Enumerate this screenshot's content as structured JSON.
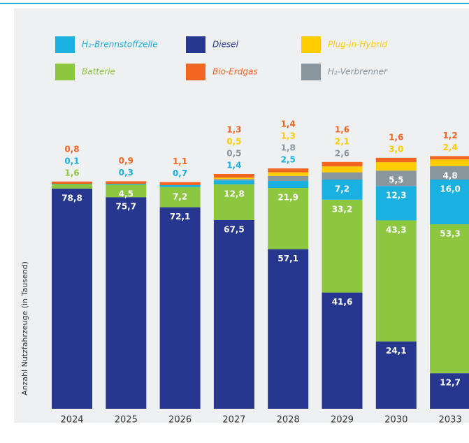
{
  "chart_data": {
    "type": "stacked_bar",
    "y_axis_label": "Anzahl Nutzfahrzeuge  (in Tausend)",
    "categories": [
      "2024",
      "2025",
      "2026",
      "2027",
      "2028",
      "2029",
      "2030",
      "2033"
    ],
    "ylim": [
      0,
      100
    ],
    "legend_position": "top",
    "series": [
      {
        "name": "Diesel",
        "color": "#27378f",
        "values": [
          78.8,
          75.7,
          72.1,
          67.5,
          57.1,
          41.6,
          24.1,
          12.7
        ],
        "value_labels": [
          "78,8",
          "75,7",
          "72,1",
          "67,5",
          "57,1",
          "41,6",
          "24,1",
          "12,7"
        ]
      },
      {
        "name": "Batterie",
        "color": "#8dc63f",
        "values": [
          1.6,
          4.5,
          7.2,
          12.8,
          21.9,
          33.2,
          43.3,
          53.3
        ],
        "value_labels": [
          "1,6",
          "4,5",
          "7,2",
          "12,8",
          "21,9",
          "33,2",
          "43,3",
          "53,3"
        ]
      },
      {
        "name": "H₂-Brennstoffzelle",
        "color": "#1ab0e0",
        "values": [
          0.1,
          0.3,
          0.7,
          1.4,
          2.5,
          7.2,
          12.3,
          16.0
        ],
        "value_labels": [
          "0,1",
          "0,3",
          "0,7",
          "1,4",
          "2,5",
          "7,2",
          "12,3",
          "16,0"
        ]
      },
      {
        "name": "H₂-Verbrenner",
        "color": "#8a969e",
        "values": [
          null,
          null,
          null,
          0.5,
          1.8,
          2.6,
          5.5,
          4.8
        ],
        "value_labels": [
          null,
          null,
          null,
          "0,5",
          "1,8",
          "2,6",
          "5,5",
          "4,8"
        ]
      },
      {
        "name": "Plug-in-Hybrid",
        "color": "#ffcc00",
        "values": [
          null,
          null,
          null,
          0.5,
          1.3,
          2.1,
          3.0,
          2.4
        ],
        "value_labels": [
          null,
          null,
          null,
          "0,5",
          "1,3",
          "2,1",
          "3,0",
          "2,4"
        ]
      },
      {
        "name": "Bio-Erdgas",
        "color": "#f26522",
        "values": [
          0.8,
          0.9,
          1.1,
          1.3,
          1.4,
          1.6,
          1.6,
          1.2
        ],
        "value_labels": [
          "0,8",
          "0,9",
          "1,1",
          "1,3",
          "1,4",
          "1,6",
          "1,6",
          "1,2"
        ]
      }
    ]
  }
}
